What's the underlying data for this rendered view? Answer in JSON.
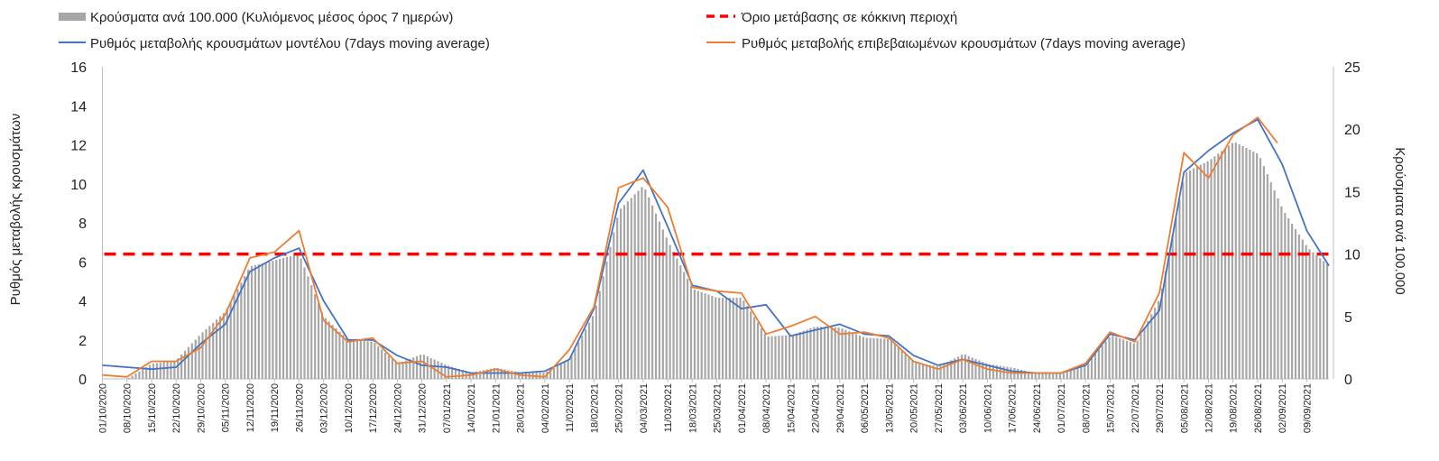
{
  "chart_data": {
    "type": "bar",
    "legend": {
      "bars": "Κρούσματα ανά 100.000 (Κυλιόμενος μέσος όρος 7 ημερών)",
      "threshold": "Όριο μετάβασης σε κόκκινη περιοχή",
      "model_line": "Ρυθμός μεταβολής κρουσμάτων μοντέλου (7days moving average)",
      "confirmed_line": "Ρυθμός μεταβολής επιβεβαιωμένων κρουσμάτων (7days moving average)"
    },
    "ylabel_left": "Ρυθμός μεταβολής κρουσμάτων",
    "ylabel_right": "Κρούσματα ανά 100.000",
    "ylim_left": [
      0,
      16
    ],
    "ylim_right": [
      0,
      25
    ],
    "yticks_left": [
      "0",
      "2",
      "4",
      "6",
      "8",
      "10",
      "12",
      "14",
      "16"
    ],
    "yticks_right": [
      "0",
      "5",
      "10",
      "15",
      "20",
      "25"
    ],
    "x_labels": [
      "01/10/2020",
      "08/10/2020",
      "15/10/2020",
      "22/10/2020",
      "29/10/2020",
      "05/11/2020",
      "12/11/2020",
      "19/11/2020",
      "26/11/2020",
      "03/12/2020",
      "10/12/2020",
      "17/12/2020",
      "24/12/2020",
      "31/12/2020",
      "07/01/2021",
      "14/01/2021",
      "21/01/2021",
      "28/01/2021",
      "04/02/2021",
      "11/02/2021",
      "18/02/2021",
      "25/02/2021",
      "04/03/2021",
      "11/03/2021",
      "18/03/2021",
      "25/03/2021",
      "01/04/2021",
      "08/04/2021",
      "15/04/2021",
      "22/04/2021",
      "29/04/2021",
      "06/05/2021",
      "13/05/2021",
      "20/05/2021",
      "27/05/2021",
      "03/06/2021",
      "10/06/2021",
      "17/06/2021",
      "24/06/2021",
      "01/07/2021",
      "08/07/2021",
      "15/07/2021",
      "22/07/2021",
      "29/07/2021",
      "05/08/2021",
      "12/08/2021",
      "19/08/2021",
      "26/08/2021",
      "02/09/2021",
      "09/09/2021"
    ],
    "threshold_value": 10,
    "bars_weekly": [
      0,
      0,
      1.2,
      1.5,
      3.6,
      5.4,
      9.0,
      9.5,
      10.0,
      5.0,
      3.1,
      3.0,
      1.2,
      2.0,
      1.1,
      0.5,
      0.9,
      0.5,
      0.5,
      1.6,
      5.3,
      13.5,
      15.5,
      11.0,
      7.2,
      6.5,
      6.5,
      3.4,
      3.5,
      4.2,
      4.1,
      3.3,
      3.2,
      1.3,
      1.0,
      2.0,
      1.2,
      0.9,
      0.4,
      0.4,
      1.2,
      3.5,
      2.8,
      6.5,
      16.5,
      17.5,
      19.0,
      18.0,
      13.5,
      10.5
    ],
    "bars_end": 9.0,
    "model_weekly": [
      0.7,
      0.6,
      0.5,
      0.6,
      1.8,
      2.8,
      5.5,
      6.2,
      6.7,
      4.0,
      2.0,
      2.0,
      1.2,
      0.7,
      0.6,
      0.3,
      0.3,
      0.3,
      0.4,
      1.0,
      3.6,
      9.0,
      10.7,
      7.8,
      4.8,
      4.5,
      3.6,
      3.8,
      2.2,
      2.5,
      2.8,
      2.3,
      2.2,
      1.2,
      0.7,
      1.0,
      0.7,
      0.4,
      0.3,
      0.3,
      0.7,
      2.3,
      2.0,
      3.5,
      10.6,
      11.7,
      12.6,
      13.3,
      11.0,
      7.6
    ],
    "model_end": 5.8,
    "confirmed_weekly": [
      0.2,
      0.1,
      0.9,
      0.9,
      1.6,
      3.3,
      6.2,
      6.5,
      7.6,
      3.0,
      1.9,
      2.1,
      0.8,
      0.9,
      0.1,
      0.2,
      0.5,
      0.2,
      0.1,
      1.5,
      3.7,
      9.8,
      10.3,
      8.8,
      4.7,
      4.5,
      4.4,
      2.3,
      2.7,
      3.2,
      2.3,
      2.4,
      2.1,
      0.9,
      0.5,
      1.0,
      0.5,
      0.3,
      0.3,
      0.3,
      0.8,
      2.4,
      1.9,
      4.4,
      11.6,
      10.3,
      12.5,
      13.4,
      null,
      null
    ],
    "confirmed_end_week": 47.8,
    "confirmed_end_value": 12.1,
    "colors": {
      "bars": "#a6a6a6",
      "threshold": "#ff0000",
      "model_line": "#4472c4",
      "confirmed_line": "#ed7d31"
    },
    "grid": false
  }
}
